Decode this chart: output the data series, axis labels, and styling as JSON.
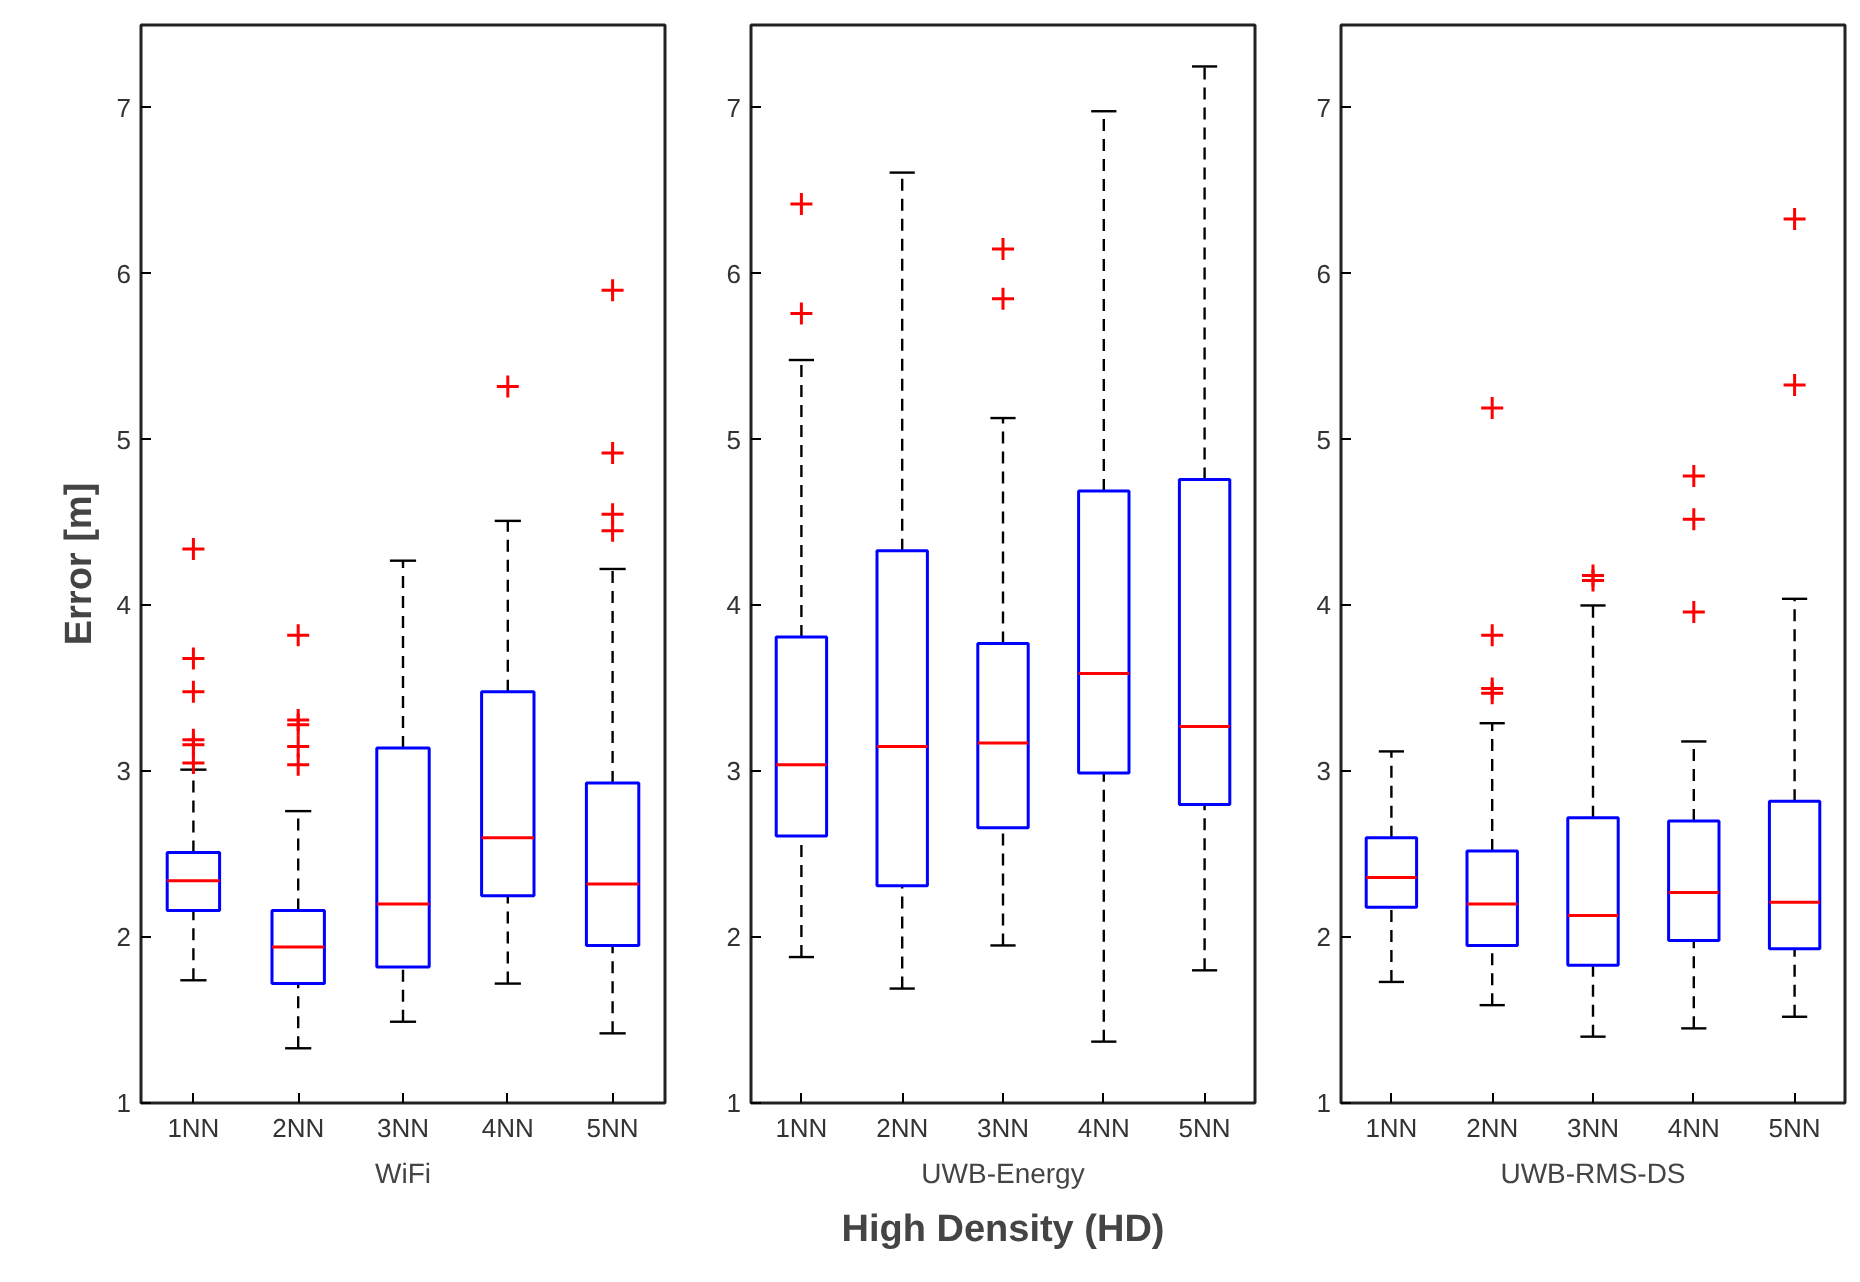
{
  "chart_data": [
    {
      "type": "box",
      "categories": [
        "1NN",
        "2NN",
        "3NN",
        "4NN",
        "5NN"
      ],
      "xlabel": "WiFi",
      "ylabel": "Error [m]",
      "ylim": [
        1,
        7.5
      ],
      "yticks": [
        1,
        2,
        3,
        4,
        5,
        6,
        7
      ],
      "grid": false,
      "marker": "cross",
      "series": [
        {
          "color": "#0000ff",
          "boxes": [
            {
              "low": 1.74,
              "q1": 2.16,
              "median": 2.34,
              "q3": 2.51,
              "high": 3.01,
              "outliers": [
                4.34,
                3.68,
                3.48,
                3.19,
                3.16,
                3.05
              ]
            },
            {
              "low": 1.33,
              "q1": 1.72,
              "median": 1.94,
              "q3": 2.16,
              "high": 2.76,
              "outliers": [
                3.82,
                3.31,
                3.28,
                3.15,
                3.04
              ]
            },
            {
              "low": 1.49,
              "q1": 1.82,
              "median": 2.2,
              "q3": 3.14,
              "high": 4.27
            },
            {
              "low": 1.72,
              "q1": 2.25,
              "median": 2.6,
              "q3": 3.48,
              "high": 4.51,
              "outliers": [
                5.32
              ]
            },
            {
              "low": 1.42,
              "q1": 1.95,
              "median": 2.32,
              "q3": 2.93,
              "high": 4.22,
              "outliers": [
                5.9,
                4.92,
                4.55,
                4.45
              ]
            }
          ]
        }
      ]
    },
    {
      "type": "box",
      "categories": [
        "1NN",
        "2NN",
        "3NN",
        "4NN",
        "5NN"
      ],
      "xlabel": "UWB-Energy",
      "ylim": [
        1,
        7.5
      ],
      "yticks": [
        1,
        2,
        3,
        4,
        5,
        6,
        7
      ],
      "grid": false,
      "marker": "cross",
      "annotations": [
        "High Density (HD)"
      ],
      "series": [
        {
          "color": "#0000ff",
          "boxes": [
            {
              "low": 1.88,
              "q1": 2.61,
              "median": 3.04,
              "q3": 3.81,
              "high": 5.48,
              "outliers": [
                6.42,
                5.76
              ]
            },
            {
              "low": 1.69,
              "q1": 2.31,
              "median": 3.15,
              "q3": 4.33,
              "high": 6.61
            },
            {
              "low": 1.95,
              "q1": 2.66,
              "median": 3.17,
              "q3": 3.77,
              "high": 5.13,
              "outliers": [
                6.15,
                5.85
              ]
            },
            {
              "low": 1.37,
              "q1": 2.99,
              "median": 3.59,
              "q3": 4.69,
              "high": 6.98
            },
            {
              "low": 1.8,
              "q1": 2.8,
              "median": 3.27,
              "q3": 4.76,
              "high": 7.25
            }
          ]
        }
      ]
    },
    {
      "type": "box",
      "categories": [
        "1NN",
        "2NN",
        "3NN",
        "4NN",
        "5NN"
      ],
      "xlabel": "UWB-RMS-DS",
      "ylim": [
        1,
        7.5
      ],
      "yticks": [
        1,
        2,
        3,
        4,
        5,
        6,
        7
      ],
      "grid": false,
      "marker": "cross",
      "series": [
        {
          "color": "#0000ff",
          "boxes": [
            {
              "low": 1.73,
              "q1": 2.18,
              "median": 2.36,
              "q3": 2.6,
              "high": 3.12
            },
            {
              "low": 1.59,
              "q1": 1.95,
              "median": 2.2,
              "q3": 2.52,
              "high": 3.29,
              "outliers": [
                5.19,
                3.82,
                3.5,
                3.47
              ]
            },
            {
              "low": 1.4,
              "q1": 1.83,
              "median": 2.13,
              "q3": 2.72,
              "high": 4.0,
              "outliers": [
                4.18,
                4.15
              ]
            },
            {
              "low": 1.45,
              "q1": 1.98,
              "median": 2.27,
              "q3": 2.7,
              "high": 3.18,
              "outliers": [
                4.78,
                4.52,
                3.96
              ]
            },
            {
              "low": 1.52,
              "q1": 1.93,
              "median": 2.21,
              "q3": 2.82,
              "high": 4.04,
              "outliers": [
                6.33,
                5.33
              ]
            }
          ]
        }
      ]
    }
  ]
}
